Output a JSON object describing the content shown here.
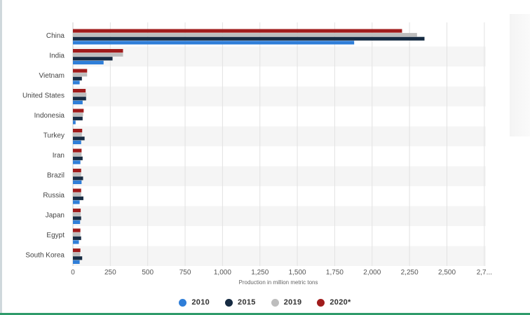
{
  "chart_data": {
    "type": "bar",
    "orientation": "horizontal",
    "categories": [
      "China",
      "India",
      "Vietnam",
      "United States",
      "Indonesia",
      "Turkey",
      "Iran",
      "Brazil",
      "Russia",
      "Japan",
      "Egypt",
      "South Korea"
    ],
    "series": [
      {
        "name": "2020*",
        "color": "#a01c1c",
        "values": [
          2200,
          335,
          95,
          85,
          72,
          62,
          58,
          55,
          55,
          52,
          50,
          50
        ]
      },
      {
        "name": "2019",
        "color": "#bdbdbd",
        "values": [
          2300,
          335,
          95,
          90,
          68,
          60,
          58,
          55,
          55,
          52,
          50,
          48
        ]
      },
      {
        "name": "2015",
        "color": "#162b42",
        "values": [
          2350,
          265,
          60,
          88,
          65,
          78,
          65,
          68,
          70,
          55,
          55,
          62
        ]
      },
      {
        "name": "2010",
        "color": "#2f7ed8",
        "values": [
          1880,
          205,
          45,
          65,
          18,
          55,
          50,
          58,
          45,
          48,
          40,
          45
        ]
      }
    ],
    "xlim": [
      0,
      2750
    ],
    "x_ticks": [
      "0",
      "250",
      "500",
      "750",
      "1,000",
      "1,250",
      "1,500",
      "1,750",
      "2,000",
      "2,250",
      "2,500",
      "2,7..."
    ],
    "xlabel": "Production in million metric tons",
    "ylabel": "",
    "grid": true,
    "legend_position": "bottom",
    "legend": [
      {
        "label": "2010",
        "color": "#2f7ed8"
      },
      {
        "label": "2015",
        "color": "#162b42"
      },
      {
        "label": "2019",
        "color": "#bdbdbd"
      },
      {
        "label": "2020*",
        "color": "#a01c1c"
      }
    ]
  }
}
